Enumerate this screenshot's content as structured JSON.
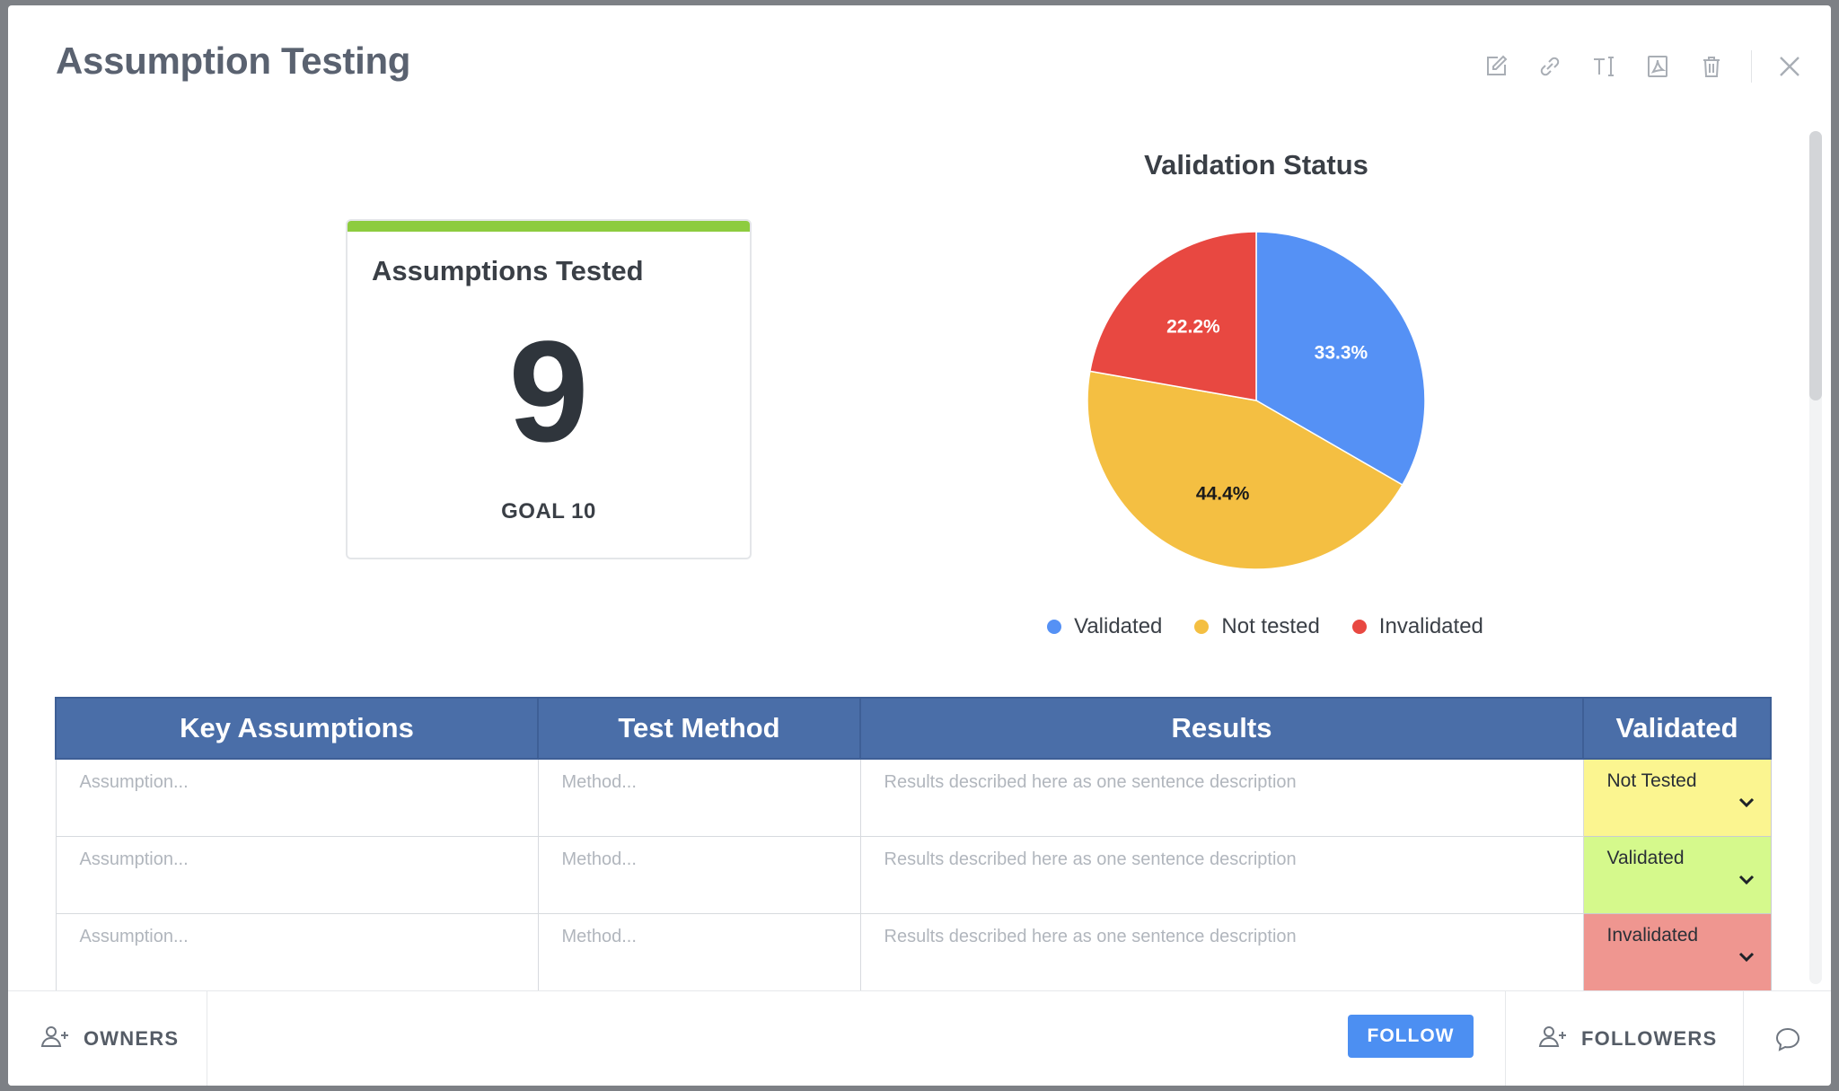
{
  "modal": {
    "title": "Assumption Testing",
    "toolbar": {
      "icons": [
        "edit-icon",
        "link-icon",
        "text-icon",
        "pdf-icon",
        "trash-icon",
        "close-icon"
      ]
    }
  },
  "kpi": {
    "title": "Assumptions Tested",
    "value": "9",
    "goal": "GOAL 10",
    "accent_color": "#8dcc3f"
  },
  "chart_data": {
    "type": "pie",
    "title": "Validation Status",
    "series": [
      {
        "name": "Validated",
        "value": 33.3,
        "label": "33.3%",
        "color": "#5591f5"
      },
      {
        "name": "Not tested",
        "value": 44.4,
        "label": "44.4%",
        "color": "#f4bf42"
      },
      {
        "name": "Invalidated",
        "value": 22.2,
        "label": "22.2%",
        "color": "#e84841"
      }
    ],
    "legend_position": "bottom"
  },
  "table": {
    "headers": [
      "Key Assumptions",
      "Test Method",
      "Results",
      "Validated"
    ],
    "rows": [
      {
        "assumption": "Assumption...",
        "method": "Method...",
        "results": "Results described here as one sentence description",
        "status": "Not Tested",
        "status_color": "#fbf590"
      },
      {
        "assumption": "Assumption...",
        "method": "Method...",
        "results": "Results described here as one sentence description",
        "status": "Validated",
        "status_color": "#d5f98c"
      },
      {
        "assumption": "Assumption...",
        "method": "Method...",
        "results": "Results described here as one sentence description",
        "status": "Invalidated",
        "status_color": "#ef9690"
      }
    ]
  },
  "footer": {
    "owners_label": "OWNERS",
    "follow_label": "FOLLOW",
    "followers_label": "FOLLOWERS"
  }
}
